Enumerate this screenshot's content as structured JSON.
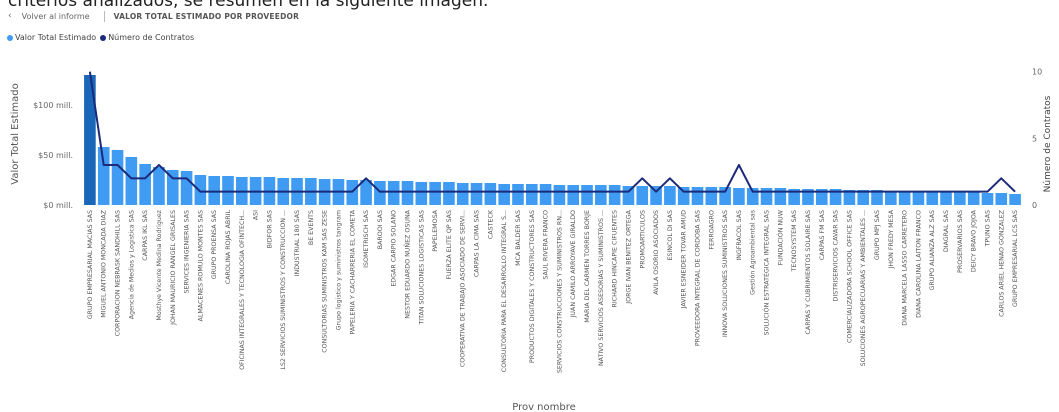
{
  "header": {
    "caption": "criterios analizados, se resumen en la siguiente imagen.",
    "back_label": "Volver al informe",
    "visual_title": "VALOR TOTAL ESTIMADO POR PROVEEDOR"
  },
  "colors": {
    "bar": "#3f9cf2",
    "bar_highlight": "#1a66b8",
    "line": "#1b2a7a",
    "axis_text": "#666666"
  },
  "icons": {
    "back": "chevron-left-icon"
  },
  "chart_data": {
    "type": "bar",
    "legend": [
      {
        "label": "Valor Total Estimado",
        "color": "#3f9cf2"
      },
      {
        "label": "Número de Contratos",
        "color": "#1b2a7a"
      }
    ],
    "legend_position": "top-left",
    "xlabel": "Prov nombre",
    "ylabel": "Valor Total Estimado",
    "y2label": "Número de Contratos",
    "ylim": [
      0,
      160
    ],
    "y_ticks": [
      0,
      50,
      100
    ],
    "y_tick_labels": [
      "$0 mill.",
      "$50 mill.",
      "$100 mill."
    ],
    "y2lim": [
      0,
      12
    ],
    "y2_ticks": [
      0,
      5,
      10
    ],
    "y2_tick_labels": [
      "0",
      "5",
      "10"
    ],
    "grid": false,
    "categories": [
      "GRUPO EMPRESARIAL MACIAS SAS",
      "MIGUEL ANTONIO MONCADA DIAZ",
      "CORPORACION NEBRASK SANDHILL SAS",
      "Agencia de Medios y Logistica SAS",
      "CARPAS IKL SAS",
      "Mosthye Vicente Medina Rodriguez",
      "JOHAN MAURICIO RANGEL GRISALES",
      "SERVICES INGENIERIA SAS",
      "ALMACENES ROMULO MONTES SAS",
      "GRUPO PROENSA SAS",
      "CAROLINA ROJAS ABRIL",
      "OFICINAS INTEGRALES Y TECNOLOGIA OFINTECH...",
      "ASI",
      "BIDFOR SAS",
      "LS2 SERVICIOS SUMINISTROS Y CONSTRUCCION ...",
      "INDUSTRIAL 180 SAS",
      "BE EVENTS",
      "CONSULTORIAS SUMINISTROS KAM SAS ZESE",
      "Grupo logistico y suministros tangram",
      "PAPELERIA Y CACHARRERIA EL COMETA",
      "ISOMETRISCH SAS",
      "BAROOI SAS",
      "EDGAR CARPIO SOLANO",
      "NESTOR EDUARDO NUÑEZ OSUNA",
      "TITAN SOLUCIONES LOGISTICAS SAS",
      "PAPELEMOSA",
      "FUERZA ELITE QP SAS",
      "COOPERATIVA DE TRABAJO ASOCIADO DE SERVI...",
      "CARPAS LA CIMA SAS",
      "CASTECK",
      "CONSULTORIA PARA EL DESARROLLO INTEGRAL S...",
      "MCA BALDER SAS",
      "PRODUCTOS DIGITALES Y CONSTRUCTORES SAS",
      "SAUL RIVERA FRANCO",
      "SERVICIOS CONSTRUCCIONES Y SUMINISTROS RN...",
      "JUAN CAMILO ARROYAVE GIRALDO",
      "MARIA DEL CARMEN TORRES BORJE",
      "NATIVO SERVICIOS ASESORIAS Y SUMINISTROS ...",
      "RICHARD HINCAPIE CIFUENTES",
      "JORGE IVAN BENITEZ ORTEGA",
      "PROMOARTICULOS",
      "AVILA OSORIO ASOCIADOS",
      "ESINCOL DI SAS",
      "JAVIER ESNEIDER TOVAR AMUD",
      "PROVEEDORA INTEGRAL DE CORDOBA SAS",
      "FERROAGRO",
      "INNOVA SOLUCIONES SUMINISTROS SAS",
      "INGFRACOL SAS",
      "Gestión Agroambiental sas",
      "SOLUCIÓN ESTRATÉGICA INTEGRAL SAS",
      "FUNDACIÓN NUW",
      "TECNOSYSTEM SAS",
      "CARPAS Y CUBRIMIENTOS SOLAIRE SAS",
      "CARPAS FM SAS",
      "DISTRISERVICIOS CAVAR SAS",
      "COMERCIALIZADORA SCHOOL OFFICE SAS",
      "SOLUCIONES AGROPECUARIAS Y AMBIENTALES ...",
      "GRUPO MPJ SAS",
      "JHON FREDY MESA",
      "DIANA MARCELA LASSO CARRETERO",
      "DIANA CAROLINA LAITON FRANCO",
      "GRUPO ALIANZA ALZ SAS",
      "DIAGRAL SAS",
      "PROSERVARIOS SAS",
      "DEICY BRAVO JOJOA",
      "TPUNO SAS",
      "CARLOS ARIEL HENAO GONZALEZ",
      "GRUPO EMPRESARIAL LCS SAS"
    ],
    "series": [
      {
        "name": "Valor Total Estimado",
        "axis": "left",
        "values": [
          130,
          58,
          55,
          48,
          41,
          38,
          35,
          34,
          30,
          29,
          29,
          28,
          28,
          28,
          27,
          27,
          27,
          26,
          26,
          25,
          25,
          24,
          24,
          24,
          23,
          23,
          23,
          22,
          22,
          22,
          21,
          21,
          21,
          21,
          20,
          20,
          20,
          20,
          20,
          19,
          19,
          19,
          19,
          18,
          18,
          18,
          18,
          17,
          17,
          17,
          17,
          16,
          16,
          16,
          16,
          15,
          15,
          15,
          14,
          14,
          14,
          14,
          14,
          13,
          13,
          12,
          12,
          11
        ]
      },
      {
        "name": "Número de Contratos",
        "axis": "right",
        "values": [
          10,
          3,
          3,
          2,
          2,
          3,
          2,
          2,
          1,
          1,
          1,
          1,
          1,
          1,
          1,
          1,
          1,
          1,
          1,
          1,
          2,
          1,
          1,
          1,
          1,
          1,
          1,
          1,
          1,
          1,
          1,
          1,
          1,
          1,
          1,
          1,
          1,
          1,
          1,
          1,
          2,
          1,
          2,
          1,
          1,
          1,
          1,
          3,
          1,
          1,
          1,
          1,
          1,
          1,
          1,
          1,
          1,
          1,
          1,
          1,
          1,
          1,
          1,
          1,
          1,
          1,
          2,
          1
        ]
      }
    ]
  }
}
